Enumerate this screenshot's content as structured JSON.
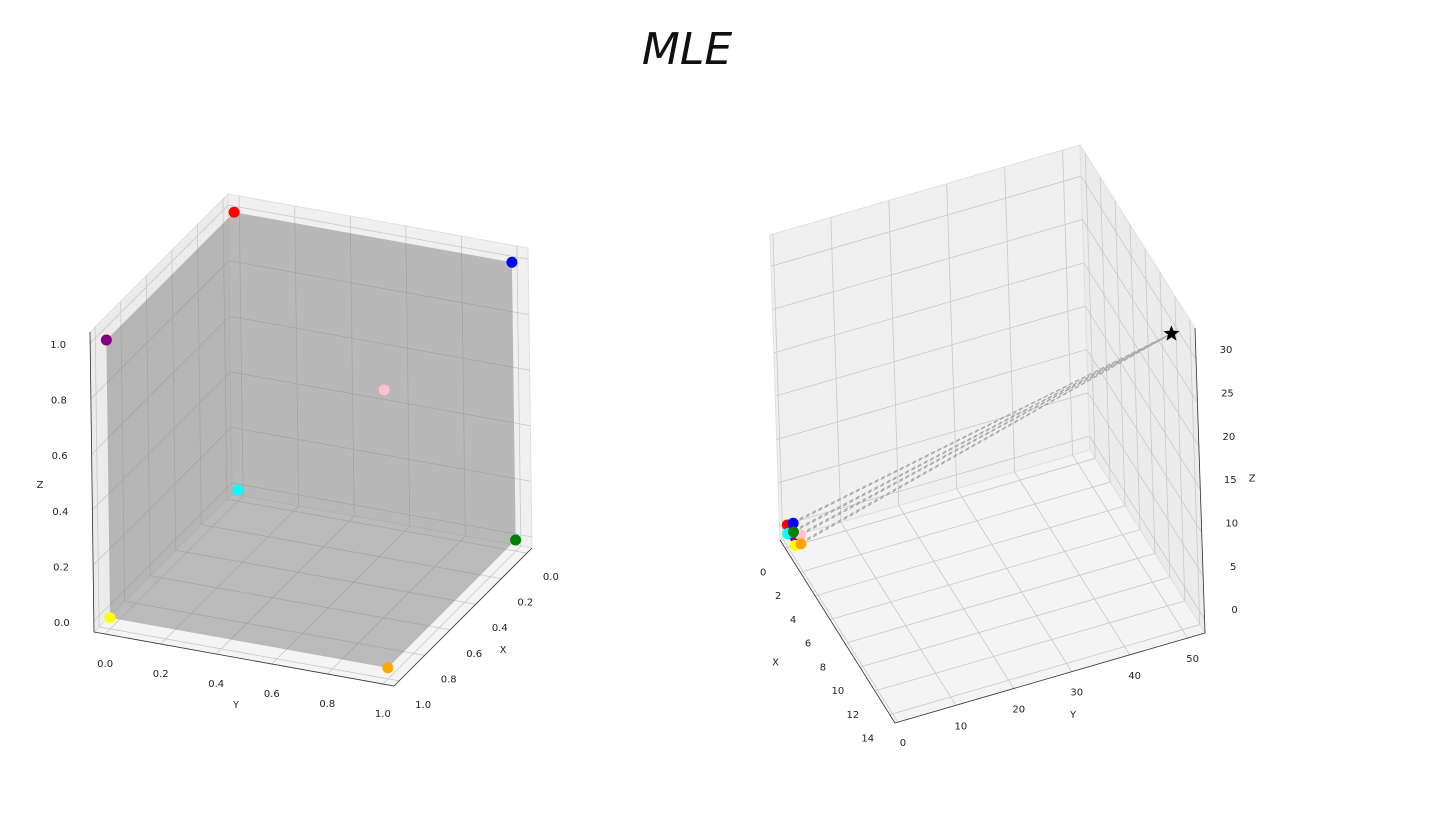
{
  "title": "MLE",
  "chart_data": [
    {
      "type": "scatter3d",
      "xlabel": "X",
      "ylabel": "Y",
      "zlabel": "Z",
      "xlim": [
        -0.04,
        1.04
      ],
      "ylim": [
        -0.04,
        1.04
      ],
      "zlim": [
        -0.04,
        1.04
      ],
      "xticks": [
        {
          "value": 0,
          "label": "0.0"
        },
        {
          "value": 0.2,
          "label": "0.2"
        },
        {
          "value": 0.4,
          "label": "0.4"
        },
        {
          "value": 0.6,
          "label": "0.6"
        },
        {
          "value": 0.8,
          "label": "0.8"
        },
        {
          "value": 1,
          "label": "1.0"
        }
      ],
      "yticks": [
        {
          "value": 0,
          "label": "0.0"
        },
        {
          "value": 0.2,
          "label": "0.2"
        },
        {
          "value": 0.4,
          "label": "0.4"
        },
        {
          "value": 0.6,
          "label": "0.6"
        },
        {
          "value": 0.8,
          "label": "0.8"
        },
        {
          "value": 1,
          "label": "1.0"
        }
      ],
      "zticks": [
        {
          "value": 0,
          "label": "0.0"
        },
        {
          "value": 0.2,
          "label": "0.2"
        },
        {
          "value": 0.4,
          "label": "0.4"
        },
        {
          "value": 0.6,
          "label": "0.6"
        },
        {
          "value": 0.8,
          "label": "0.8"
        },
        {
          "value": 1,
          "label": "1.0"
        }
      ],
      "grid": true,
      "surface": {
        "color": "#808080",
        "alpha": 0.5
      },
      "series": [
        {
          "marker": "o",
          "colors": [
            "red",
            "blue",
            "purple",
            "pink",
            "cyan",
            "green",
            "yellow",
            "orange"
          ],
          "x": [
            0,
            0,
            1,
            1,
            0,
            0,
            1,
            1
          ],
          "y": [
            0,
            1,
            0,
            1,
            0,
            1,
            0,
            1
          ],
          "z": [
            1,
            1,
            1,
            1,
            0,
            0,
            0,
            0
          ]
        }
      ]
    },
    {
      "type": "scatter3d",
      "xlabel": "X",
      "ylabel": "Y",
      "zlabel": "Z",
      "xlim": [
        -0.7,
        14.7
      ],
      "ylim": [
        -0.5,
        53
      ],
      "zlim": [
        -1.6,
        33.6
      ],
      "xticks": [
        0,
        2,
        4,
        6,
        8,
        10,
        12,
        14
      ],
      "yticks": [
        0,
        10,
        20,
        30,
        40,
        50
      ],
      "zticks": [
        0,
        5,
        10,
        15,
        20,
        25,
        30
      ],
      "grid": true,
      "links": {
        "style": "dashed",
        "color": "#aaaaaa"
      },
      "series": [
        {
          "marker": "o",
          "colors": [
            "red",
            "blue",
            "purple",
            "pink",
            "cyan",
            "green",
            "yellow",
            "orange"
          ],
          "x": [
            0,
            0,
            1,
            1,
            0,
            0,
            1,
            1
          ],
          "y": [
            0,
            1,
            0,
            1,
            0,
            1,
            0,
            1
          ],
          "z": [
            1,
            1,
            1,
            1,
            0,
            0,
            0,
            0
          ]
        },
        {
          "marker": "*",
          "colors": [
            "black"
          ],
          "x": [
            13
          ],
          "y": [
            51
          ],
          "z": [
            31
          ]
        }
      ]
    }
  ]
}
